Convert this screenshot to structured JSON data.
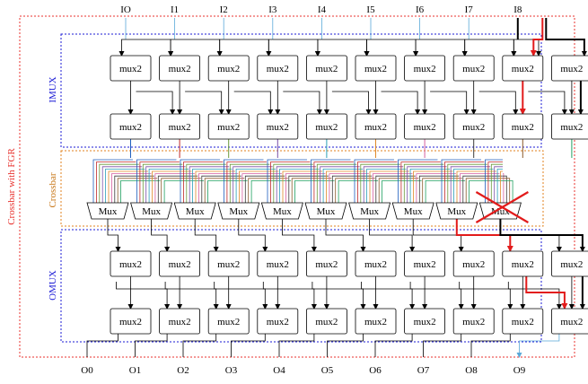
{
  "labels": {
    "outer": "Crossbar with FGR",
    "imux": "IMUX",
    "crossbar": "Crossbar",
    "omux": "OMUX",
    "mux2": "mux2",
    "mux": "Mux"
  },
  "inputs": [
    "IO",
    "I1",
    "I2",
    "I3",
    "I4",
    "I5",
    "I6",
    "I7",
    "I8"
  ],
  "outputs": [
    "O0",
    "O1",
    "O2",
    "O3",
    "O4",
    "O5",
    "O6",
    "O7",
    "O8",
    "O9"
  ],
  "colors": {
    "outer_border": "#e8322e",
    "imux_border": "#1b1bd6",
    "crossbar_border": "#e0821c",
    "omux_border": "#1b1bd6",
    "imux_label": "#1b1bd6",
    "crossbar_label": "#c8781a",
    "omux_label": "#1b1bd6",
    "fault": "#e21b1b",
    "wire": "#000000",
    "io_line": "#5aa8d8"
  },
  "crossbar_wire_colors": [
    "#1f5fbf",
    "#c0282a",
    "#6a9a3c",
    "#7a4fa8",
    "#2aa0b8",
    "#e08a2a",
    "#d65fa0",
    "#3a3a3a",
    "#8a5a2a",
    "#20a060"
  ],
  "faulty_mux_index": 9
}
